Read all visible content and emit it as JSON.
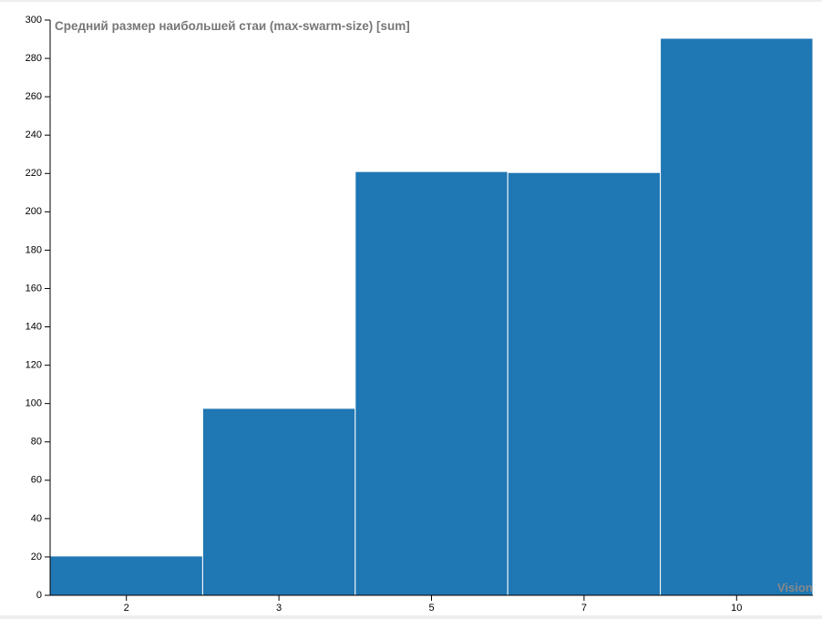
{
  "chart_data": {
    "type": "bar",
    "title": "Средний размер наибольшей стаи (max-swarm-size) [sum]",
    "x_label": "Vision",
    "categories": [
      "2",
      "3",
      "5",
      "7",
      "10"
    ],
    "values": [
      20.5,
      97.5,
      221,
      220.5,
      290.5
    ],
    "color": "#1f77b4",
    "ylim": [
      0,
      300
    ],
    "yticks": [
      0,
      20,
      40,
      60,
      80,
      100,
      120,
      140,
      160,
      180,
      200,
      220,
      240,
      260,
      280,
      300
    ]
  }
}
